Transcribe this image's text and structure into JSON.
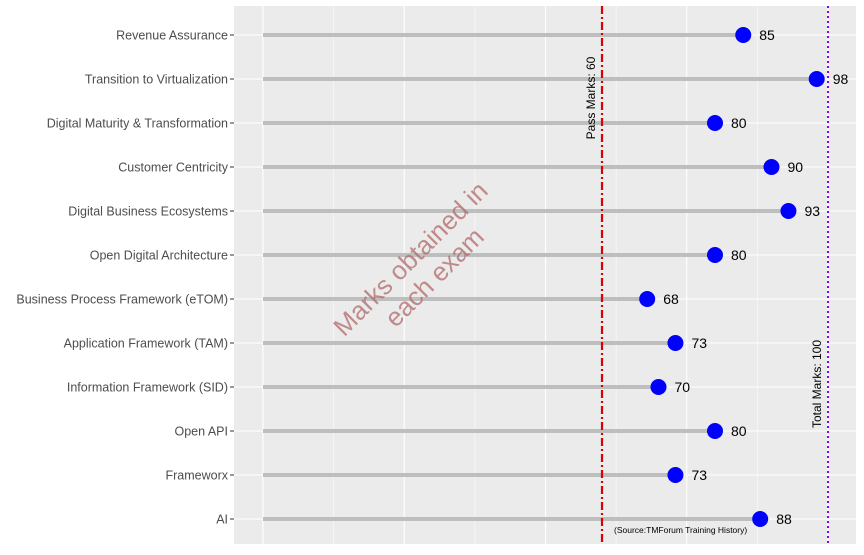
{
  "chart_data": {
    "type": "lollipop",
    "orientation": "horizontal",
    "categories": [
      "Revenue Assurance",
      "Transition to Virtualization",
      "Digital Maturity & Transformation",
      "Customer Centricity",
      "Digital Business Ecosystems",
      "Open Digital Architecture",
      "Business Process Framework (eTOM)",
      "Application Framework (TAM)",
      "Information Framework (SID)",
      "Open API",
      "Frameworx",
      "AI"
    ],
    "values": [
      85,
      98,
      80,
      90,
      93,
      80,
      68,
      73,
      70,
      80,
      73,
      88
    ],
    "xlim": [
      0,
      104
    ],
    "grid": true,
    "reference_lines": [
      {
        "value": 60,
        "label": "Pass Marks: 60",
        "color": "#dd0000",
        "style": "dashdot"
      },
      {
        "value": 100,
        "label": "Total Marks: 100",
        "color": "#8800ff",
        "style": "dotted"
      }
    ],
    "watermark": [
      "Marks obtained  in",
      "each exam"
    ],
    "source_note": "(Source:TMForum Training History)",
    "colors": {
      "panel": "#ebebeb",
      "grid": "#ffffff",
      "stem": "#bebebe",
      "point": "#0000ff"
    }
  }
}
